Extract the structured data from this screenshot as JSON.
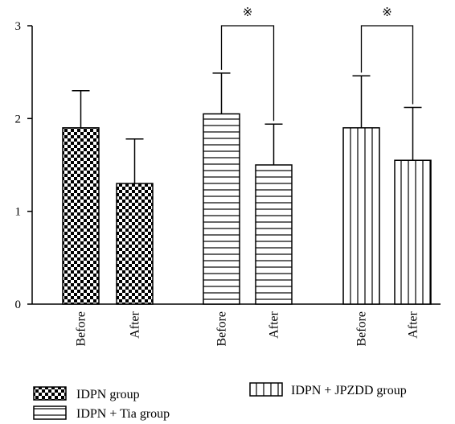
{
  "chart_data": {
    "type": "bar",
    "categories": [
      "Before",
      "After"
    ],
    "series": [
      {
        "name": "IDPN group",
        "pattern": "checker",
        "values": [
          1.9,
          1.3
        ],
        "errors": [
          0.4,
          0.48
        ]
      },
      {
        "name": "IDPN + Tia group",
        "pattern": "horizontal",
        "values": [
          2.05,
          1.5
        ],
        "errors": [
          0.44,
          0.44
        ]
      },
      {
        "name": "IDPN + JPZDD group",
        "pattern": "vertical",
        "values": [
          1.9,
          1.55
        ],
        "errors": [
          0.56,
          0.57
        ]
      }
    ],
    "yticks": [
      "0",
      "1",
      "2",
      "3"
    ],
    "ylim": [
      0,
      3
    ],
    "grid": false,
    "significance": [
      {
        "series": 1,
        "marker": "※"
      },
      {
        "series": 2,
        "marker": "※"
      }
    ],
    "legend_position": "bottom",
    "colors": {
      "bar_fill": "#000000",
      "bar_background": "#ffffff",
      "axis": "#000000"
    }
  }
}
